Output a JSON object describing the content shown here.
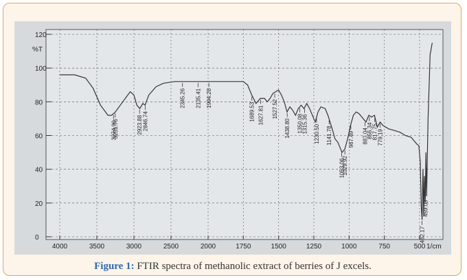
{
  "chart_data": {
    "type": "line",
    "y_label": "%T",
    "x_label": "1/cm",
    "color": "#333333",
    "grid": true,
    "xlim": [
      4000,
      400
    ],
    "x_scale_change": 2000,
    "ylim": [
      0,
      120
    ],
    "xticks": [
      4000,
      3500,
      3000,
      2500,
      2000,
      1750,
      1500,
      1250,
      1000,
      750,
      500
    ],
    "yticks": [
      0,
      20,
      40,
      60,
      80,
      100,
      120
    ],
    "x": [
      4000,
      3800,
      3650,
      3550,
      3450,
      3350,
      3300,
      3250,
      3150,
      3050,
      3000,
      2960,
      2920,
      2880,
      2850,
      2800,
      2700,
      2600,
      2450,
      2300,
      2150,
      2000,
      1850,
      1750,
      1720,
      1690,
      1660,
      1630,
      1600,
      1580,
      1560,
      1540,
      1520,
      1500,
      1480,
      1460,
      1440,
      1420,
      1400,
      1380,
      1360,
      1340,
      1320,
      1300,
      1280,
      1260,
      1240,
      1220,
      1200,
      1170,
      1150,
      1120,
      1100,
      1080,
      1060,
      1050,
      1030,
      1010,
      990,
      970,
      950,
      930,
      900,
      880,
      860,
      840,
      820,
      800,
      780,
      760,
      720,
      680,
      640,
      600,
      560,
      540,
      520,
      505,
      495,
      488,
      482,
      476,
      470,
      465,
      460,
      455,
      450,
      440,
      425,
      410
    ],
    "values": [
      96,
      96,
      94,
      88,
      78,
      72,
      72,
      74,
      80,
      86,
      84,
      78,
      76,
      79,
      78,
      84,
      89,
      91,
      92,
      92,
      92,
      92,
      92,
      92,
      90,
      84,
      79,
      82,
      82,
      80,
      82,
      85,
      86,
      87,
      84,
      80,
      74,
      77,
      75,
      72,
      76,
      78,
      76,
      79,
      76,
      72,
      68,
      74,
      77,
      76,
      72,
      64,
      58,
      56,
      52,
      50,
      52,
      58,
      66,
      72,
      74,
      73,
      70,
      68,
      72,
      71,
      72,
      65,
      68,
      66,
      64,
      63,
      62,
      60,
      59,
      57,
      55,
      54,
      44,
      18,
      10,
      40,
      12,
      36,
      20,
      50,
      24,
      70,
      108,
      115
    ],
    "peaks": [
      {
        "x": 3274.9,
        "label": "3274.90"
      },
      {
        "x": 3251.76,
        "label": "3251.76"
      },
      {
        "x": 2923.88,
        "label": "2923.88"
      },
      {
        "x": 2846.74,
        "label": "2846.74"
      },
      {
        "x": 2345.26,
        "label": "2345.26"
      },
      {
        "x": 2135.41,
        "label": "2135.41"
      },
      {
        "x": 1994.28,
        "label": "1994.28"
      },
      {
        "x": 1689.53,
        "label": "1689.53"
      },
      {
        "x": 1627.81,
        "label": "1627.81"
      },
      {
        "x": 1527.52,
        "label": "1527.52"
      },
      {
        "x": 1438.8,
        "label": "1438.80"
      },
      {
        "x": 1350.08,
        "label": "1350.08"
      },
      {
        "x": 1315.36,
        "label": "1315.36"
      },
      {
        "x": 1230.5,
        "label": "1230.50"
      },
      {
        "x": 1141.78,
        "label": "1141.78"
      },
      {
        "x": 1053.06,
        "label": "1053.06"
      },
      {
        "x": 1029.92,
        "label": "1029.92"
      },
      {
        "x": 987.49,
        "label": "987.49"
      },
      {
        "x": 887.04,
        "label": "887.04"
      },
      {
        "x": 856.34,
        "label": "856.34"
      },
      {
        "x": 817.75,
        "label": "817.75"
      },
      {
        "x": 779.19,
        "label": "779.19"
      },
      {
        "x": 482.17,
        "label": "482.17"
      },
      {
        "x": 459.03,
        "label": "459.03"
      }
    ]
  },
  "figure_caption": {
    "label": "Figure 1:",
    "text": "FTIR spectra of methanolic extract of berries of J excels."
  }
}
